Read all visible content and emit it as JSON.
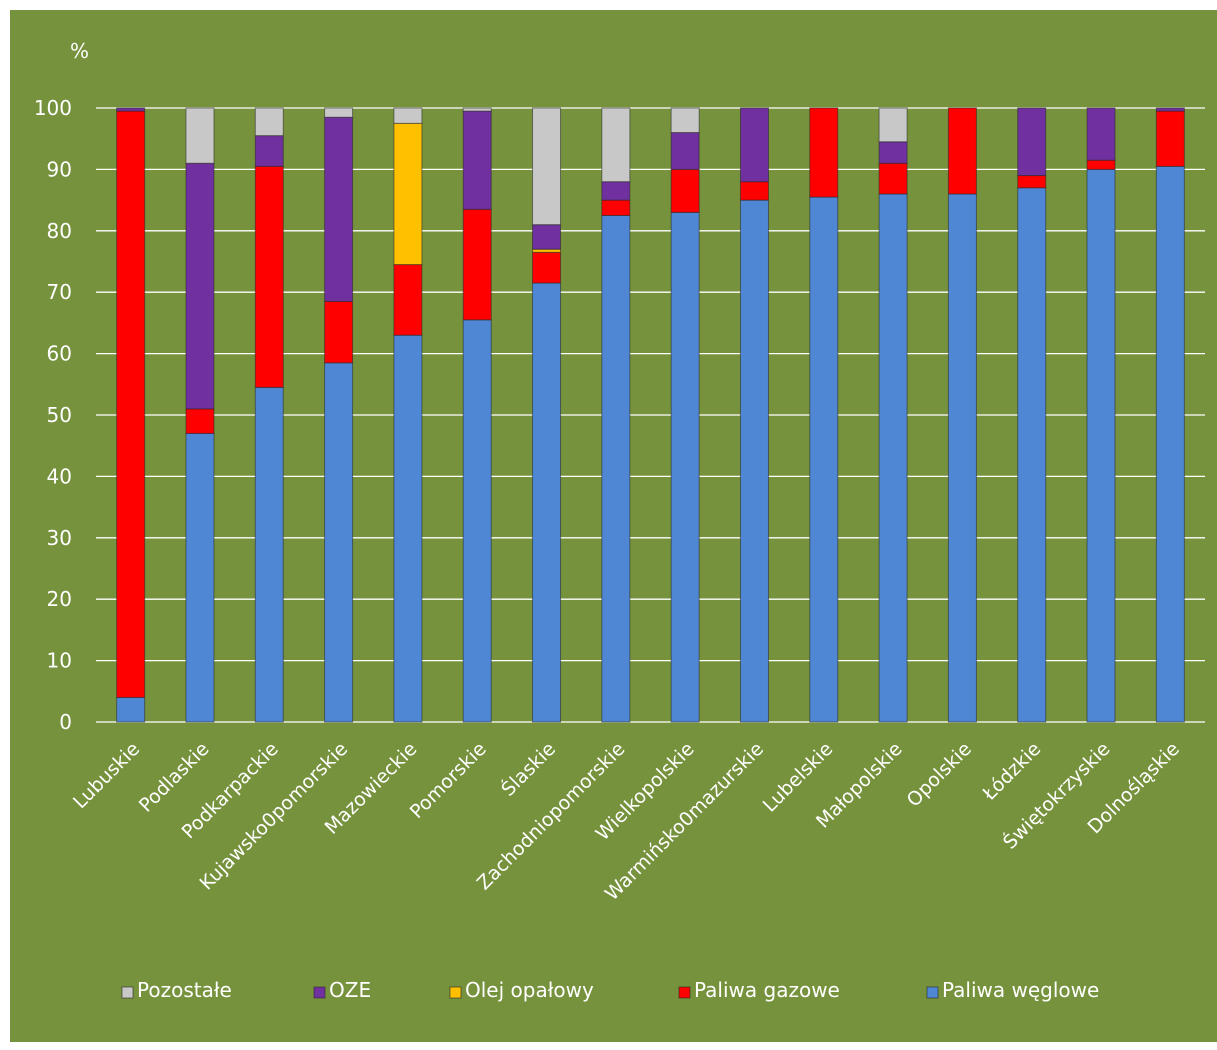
{
  "chart_data": {
    "type": "bar",
    "stacked": true,
    "y_unit": "%",
    "ylim": [
      0,
      100
    ],
    "yticks": [
      0,
      10,
      20,
      30,
      40,
      50,
      60,
      70,
      80,
      90,
      100
    ],
    "grid": true,
    "legend_position": "bottom",
    "categories": [
      "Lubuskie",
      "Podlaskie",
      "Podkarpackie",
      "Kujawsko0pomorskie",
      "Mazowieckie",
      "Pomorskie",
      "Ślaskie",
      "Zachodniopomorskie",
      "Wielkopolskie",
      "Warmińsko0mazurskie",
      "Lubelskie",
      "Małopolskie",
      "Opolskie",
      "Łódzkie",
      "Świętokrzyskie",
      "Dolnośląskie"
    ],
    "series": [
      {
        "name": "Paliwa węglowe",
        "color": "#4f87d4",
        "values": [
          4,
          47,
          54.5,
          58.5,
          63,
          65.5,
          71.5,
          82.5,
          83,
          85,
          85.5,
          86,
          86,
          87,
          90,
          90.5
        ]
      },
      {
        "name": "Paliwa gazowe",
        "color": "#ff0000",
        "values": [
          95.5,
          4,
          36,
          10,
          11.5,
          18,
          5,
          2.5,
          7,
          3,
          14.5,
          5,
          14,
          2,
          1.5,
          9
        ]
      },
      {
        "name": "Olej opałowy",
        "color": "#ffc000",
        "values": [
          0,
          0,
          0,
          0,
          23,
          0,
          0.5,
          0,
          0,
          0,
          0,
          0,
          0,
          0,
          0,
          0
        ]
      },
      {
        "name": "OZE",
        "color": "#7030a0",
        "values": [
          0.5,
          40,
          5,
          30,
          0,
          16,
          4,
          3,
          6,
          12,
          0,
          3.5,
          0,
          11,
          8.5,
          0.5
        ]
      },
      {
        "name": "Pozostałe",
        "color": "#c8c8c8",
        "values": [
          0,
          9,
          4.5,
          1.5,
          2.5,
          0.5,
          19,
          12,
          4,
          0,
          0,
          5.5,
          0,
          0,
          0,
          0
        ]
      }
    ],
    "legend_order": [
      "Pozostałe",
      "OZE",
      "Olej opałowy",
      "Paliwa gazowe",
      "Paliwa węglowe"
    ]
  }
}
